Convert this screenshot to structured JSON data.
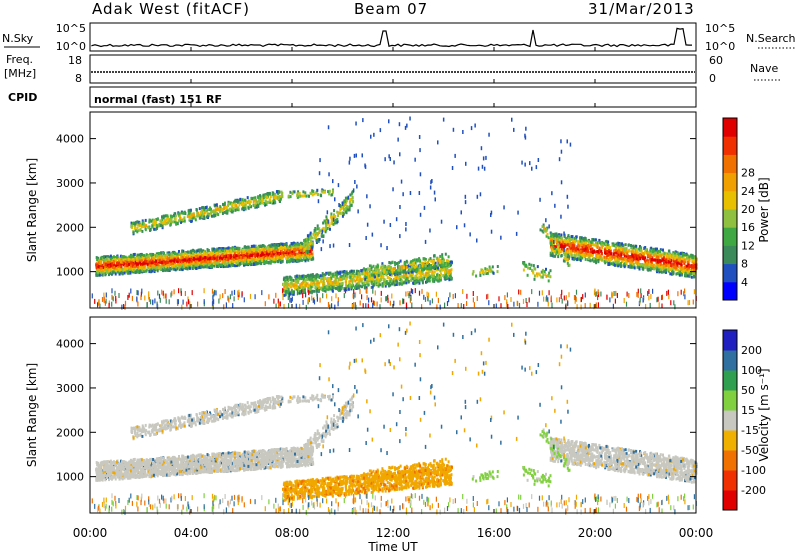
{
  "header": {
    "title": "Adak West (fitACF)",
    "beam": "Beam 07",
    "date": "31/Mar/2013"
  },
  "mode_label": "normal (fast) 151 RF",
  "chart_data": [
    {
      "type": "line",
      "panel": "noise",
      "left_label": "N.Sky",
      "right_label": "N.Search",
      "left_ticks": [
        "10^5",
        "10^0"
      ],
      "right_ticks": [
        "10^5",
        "10^0"
      ],
      "scale": "log",
      "ylim": [
        1,
        100000
      ]
    },
    {
      "type": "line",
      "panel": "frequency",
      "left_label_top": "Freq.",
      "left_label_bottom": "[MHz]",
      "right_label": "Nave",
      "left_ticks": [
        18,
        8
      ],
      "right_ticks": [
        60,
        0
      ],
      "ylim": [
        8,
        18
      ],
      "y2lim": [
        0,
        60
      ]
    },
    {
      "type": "table",
      "panel": "cpid",
      "label": "CPID"
    },
    {
      "type": "heatmap",
      "panel": "power",
      "ylabel": "Slant Range [km]",
      "yticks": [
        1000,
        2000,
        3000,
        4000
      ],
      "ylim": [
        180,
        4600
      ],
      "colorbar_label": "Power [dB]",
      "colorbar_ticks": [
        4,
        8,
        12,
        16,
        20,
        24,
        28
      ],
      "colorbar_colors": [
        "#0000ff",
        "#2050c0",
        "#3a8a5a",
        "#3fa842",
        "#90c040",
        "#e8c000",
        "#f0a000",
        "#f07000",
        "#f03000",
        "#e00000"
      ]
    },
    {
      "type": "heatmap",
      "panel": "velocity",
      "ylabel": "Slant Range [km]",
      "yticks": [
        1000,
        2000,
        3000,
        4000
      ],
      "ylim": [
        180,
        4600
      ],
      "colorbar_label": "Velocity [m s⁻¹]",
      "colorbar_ticks": [
        "200",
        "100",
        "50",
        "15",
        "-15",
        "-50",
        "-100",
        "-200"
      ],
      "colorbar_colors": [
        "#2020c0",
        "#3070a0",
        "#30a050",
        "#80d040",
        "#c8c8c0",
        "#f0b000",
        "#f07000",
        "#f03000",
        "#e00000"
      ]
    }
  ],
  "time_axis": {
    "label": "Time UT",
    "ticks": [
      "00:00",
      "04:00",
      "08:00",
      "12:00",
      "16:00",
      "20:00",
      "00:00"
    ]
  }
}
